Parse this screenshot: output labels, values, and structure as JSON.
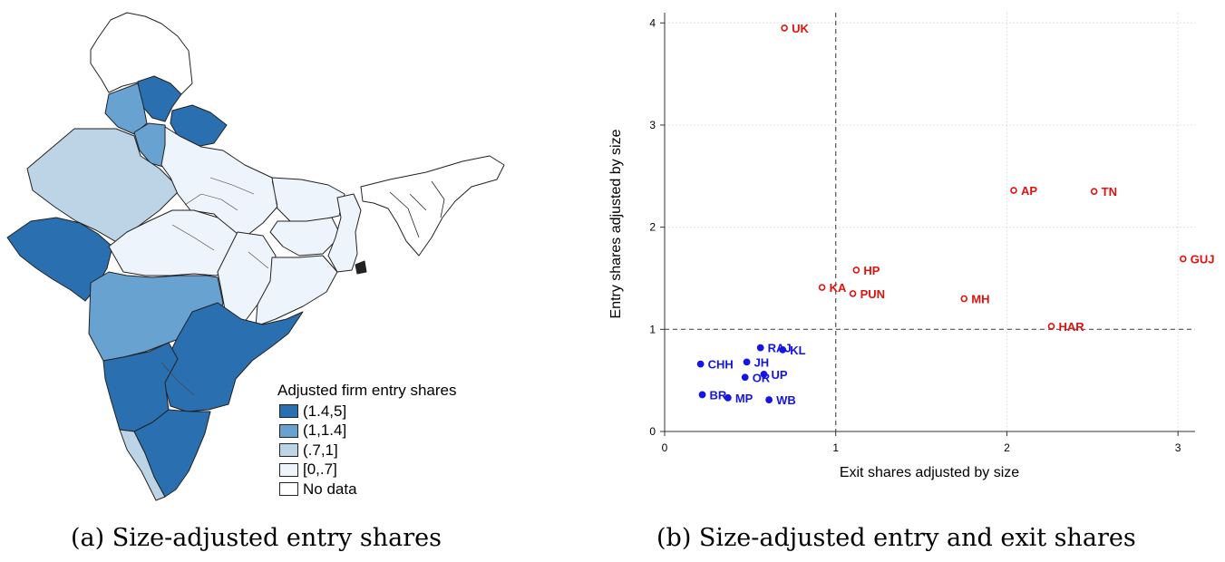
{
  "panel_a": {
    "caption": "(a) Size-adjusted entry shares",
    "legend": {
      "title": "Adjusted firm entry shares",
      "items": [
        {
          "label": "(1.4,5]",
          "color": "#2a6faf"
        },
        {
          "label": "(1,1.4]",
          "color": "#67a2d0"
        },
        {
          "label": "(.7,1]",
          "color": "#bcd4e6"
        },
        {
          "label": "[0,.7]",
          "color": "#eef4fb"
        },
        {
          "label": "No data",
          "color": "#ffffff"
        }
      ]
    }
  },
  "panel_b": {
    "caption": "(b) Size-adjusted entry and exit shares"
  },
  "chart_data": {
    "type": "scatter",
    "xlabel": "Exit shares adjusted by size",
    "ylabel": "Entry shares adjusted by size",
    "xlim": [
      0,
      3.1
    ],
    "ylim": [
      0,
      4.1
    ],
    "xticks": [
      0,
      1,
      2,
      3
    ],
    "yticks": [
      0,
      1,
      2,
      3,
      4
    ],
    "grid": true,
    "reference_lines": {
      "x": 1,
      "y": 1
    },
    "colors": {
      "above": "#e0120f",
      "below": "#1515e6"
    },
    "points": [
      {
        "label": "UK",
        "x": 0.7,
        "y": 3.95,
        "group": "above"
      },
      {
        "label": "AP",
        "x": 2.04,
        "y": 2.36,
        "group": "above"
      },
      {
        "label": "TN",
        "x": 2.51,
        "y": 2.35,
        "group": "above"
      },
      {
        "label": "GUJ",
        "x": 3.03,
        "y": 1.69,
        "group": "above"
      },
      {
        "label": "HP",
        "x": 1.12,
        "y": 1.58,
        "group": "above"
      },
      {
        "label": "KA",
        "x": 0.92,
        "y": 1.41,
        "group": "above"
      },
      {
        "label": "PUN",
        "x": 1.1,
        "y": 1.35,
        "group": "above"
      },
      {
        "label": "MH",
        "x": 1.75,
        "y": 1.3,
        "group": "above"
      },
      {
        "label": "HAR",
        "x": 2.26,
        "y": 1.03,
        "group": "above"
      },
      {
        "label": "RAJ",
        "x": 0.56,
        "y": 0.82,
        "group": "below"
      },
      {
        "label": "KL",
        "x": 0.69,
        "y": 0.8,
        "group": "below"
      },
      {
        "label": "CHH",
        "x": 0.21,
        "y": 0.66,
        "group": "below"
      },
      {
        "label": "JH",
        "x": 0.48,
        "y": 0.68,
        "group": "below"
      },
      {
        "label": "UP",
        "x": 0.58,
        "y": 0.56,
        "group": "below"
      },
      {
        "label": "OR",
        "x": 0.47,
        "y": 0.53,
        "group": "below"
      },
      {
        "label": "BR",
        "x": 0.22,
        "y": 0.36,
        "group": "below"
      },
      {
        "label": "MP",
        "x": 0.37,
        "y": 0.33,
        "group": "below"
      },
      {
        "label": "WB",
        "x": 0.61,
        "y": 0.31,
        "group": "below"
      }
    ]
  }
}
